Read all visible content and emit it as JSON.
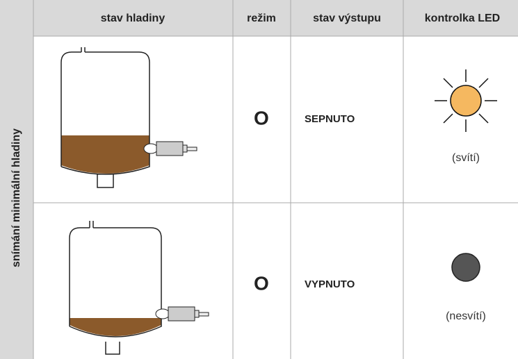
{
  "table": {
    "header": [
      "stav hladiny",
      "režim",
      "stav výstupu",
      "kontrolka LED"
    ],
    "row_label": "snímání minimální hladiny",
    "rows": [
      {
        "mode": "O",
        "output": "SEPNUTO",
        "led": "(svítí)"
      },
      {
        "mode": "O",
        "output": "VYPNUTO",
        "led": "(nesvítí)"
      }
    ]
  }
}
